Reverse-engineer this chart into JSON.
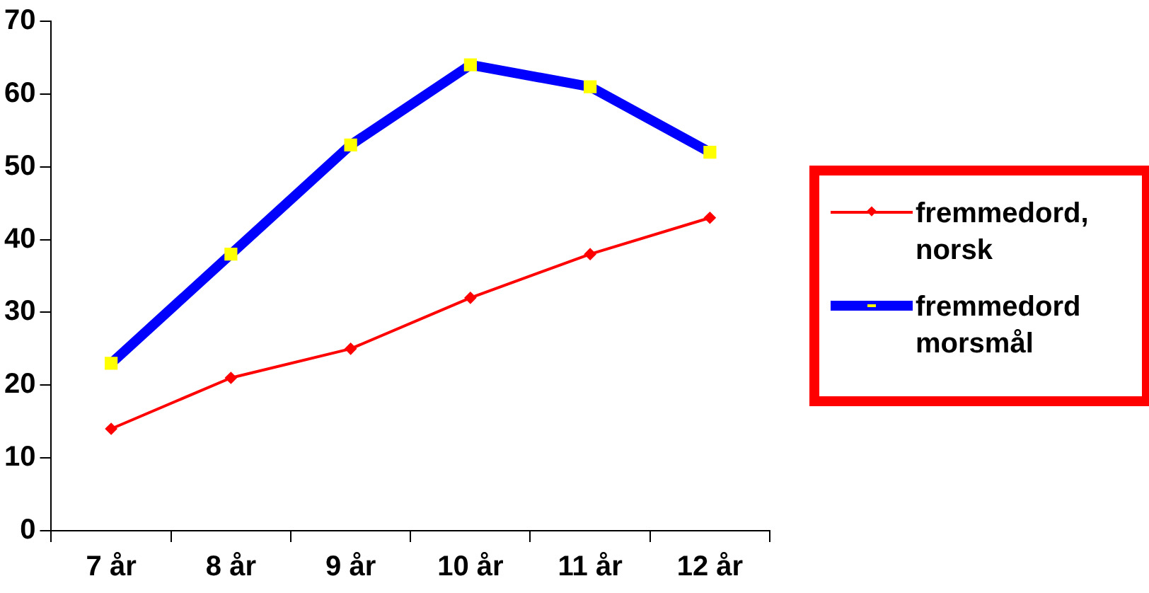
{
  "chart_data": {
    "type": "line",
    "categories": [
      "7 år",
      "8 år",
      "9 år",
      "10 år",
      "11 år",
      "12 år"
    ],
    "series": [
      {
        "name": "fremmedord, norsk",
        "color": "#ff0000",
        "values": [
          14,
          21,
          25,
          32,
          38,
          43
        ],
        "marker": "diamond"
      },
      {
        "name": "fremmedord morsmål",
        "color": "#0000ff",
        "values": [
          23,
          38,
          53,
          64,
          61,
          52
        ],
        "marker": "square"
      }
    ],
    "ylim": [
      0,
      70
    ],
    "yticks": [
      0,
      10,
      20,
      30,
      40,
      50,
      60,
      70
    ],
    "grid": false,
    "legend": "right"
  }
}
